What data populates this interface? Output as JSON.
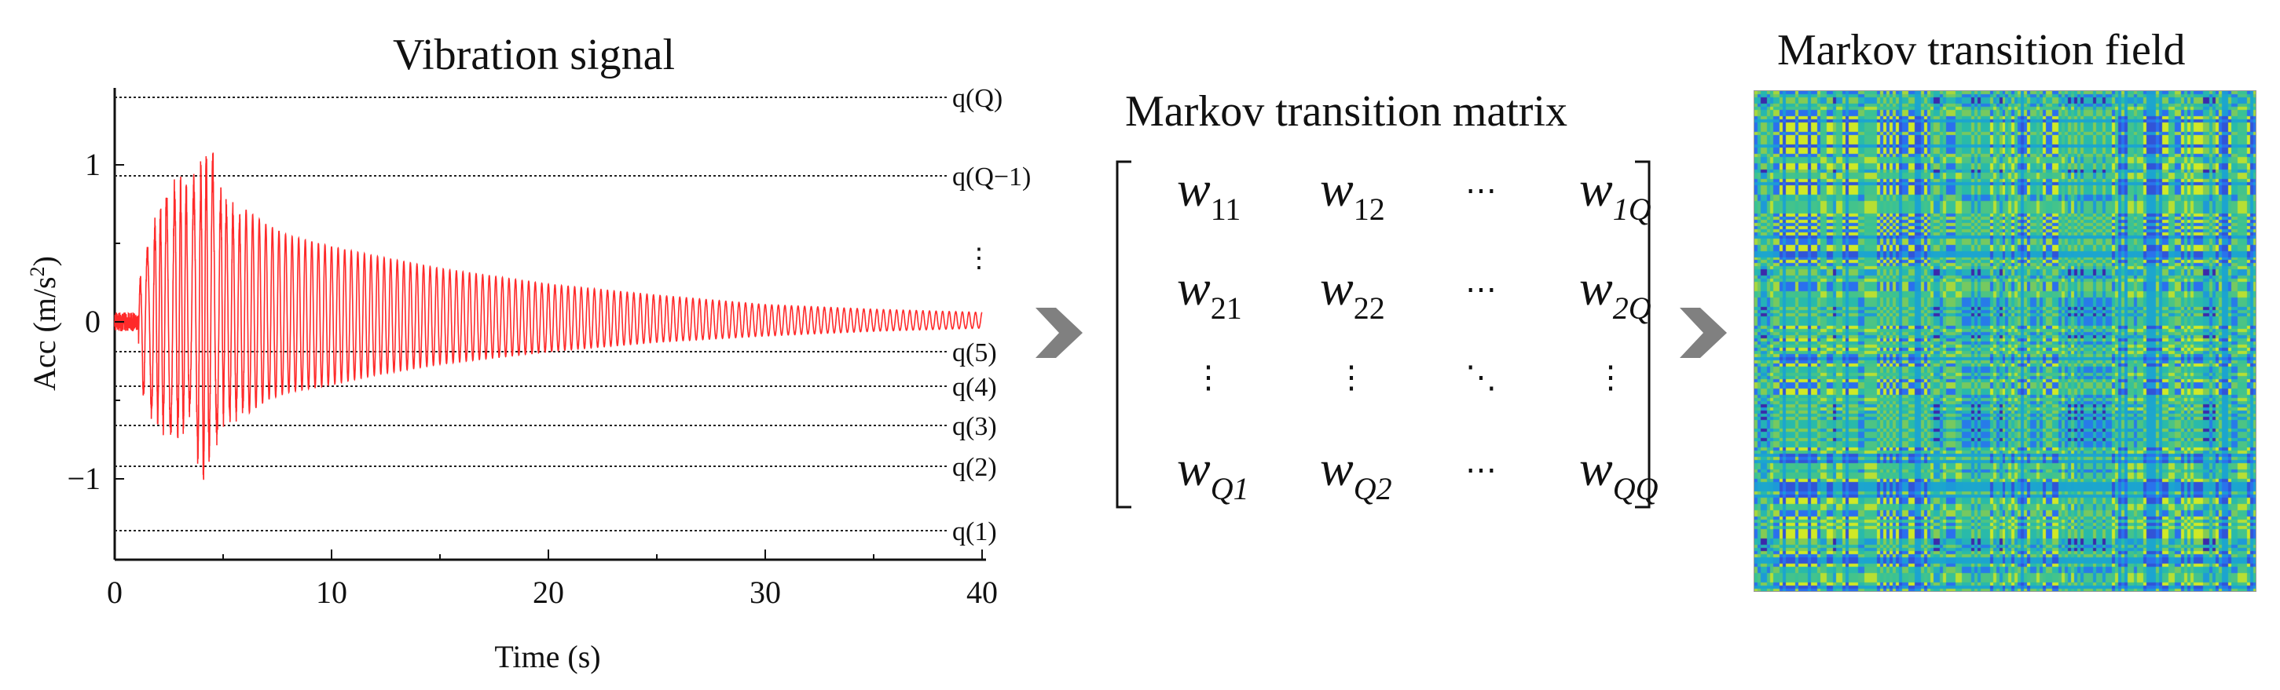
{
  "signal_panel": {
    "title": "Vibration signal",
    "xlabel": "Time (s)",
    "ylabel_prefix": "Acc (m/s",
    "ylabel_sup": "2",
    "ylabel_suffix": ")",
    "x_ticks": [
      "0",
      "10",
      "20",
      "30",
      "40"
    ],
    "y_ticks": [
      "1",
      "0",
      "−1"
    ],
    "levels": [
      "q(Q)",
      "q(Q−1)",
      "q(5)",
      "q(4)",
      "q(3)",
      "q(2)",
      "q(1)"
    ],
    "vertical_ellipsis": "⋮",
    "line_color": "#ff2a2a"
  },
  "matrix_panel": {
    "title": "Markov transition matrix",
    "symbol": "w",
    "cells": [
      [
        "11",
        "12",
        "⋯",
        "1Q"
      ],
      [
        "21",
        "22",
        "⋯",
        "2Q"
      ],
      [
        "⋮",
        "⋮",
        "⋱",
        "⋮"
      ],
      [
        "Q1",
        "Q2",
        "⋯",
        "QQ"
      ]
    ]
  },
  "field_panel": {
    "title": "Markov transition field",
    "colormap": [
      "#3d26a8",
      "#2b6df0",
      "#1aa2d3",
      "#2cc0a0",
      "#8dcc4c",
      "#f9fb0e"
    ]
  },
  "arrow_color": "#808080",
  "chart_data": {
    "type": "line",
    "title": "Vibration signal",
    "xlabel": "Time (s)",
    "ylabel": "Acc (m/s2)",
    "xlim": [
      0,
      40
    ],
    "ylim": [
      -1.5,
      1.45
    ],
    "x_ticks": [
      0,
      10,
      20,
      30,
      40
    ],
    "y_ticks": [
      -1,
      0,
      1
    ],
    "series": [
      {
        "x": [
          0,
          1,
          1.5,
          2,
          2.5,
          3,
          3.5,
          4,
          4.4,
          5,
          6,
          7,
          8,
          10,
          12,
          15,
          20,
          25,
          30,
          35,
          40
        ],
        "y_peak_positive": [
          0.05,
          0.2,
          0.5,
          0.75,
          0.93,
          0.95,
          0.9,
          1.1,
          1.23,
          0.85,
          0.72,
          0.62,
          0.55,
          0.48,
          0.42,
          0.34,
          0.24,
          0.17,
          0.11,
          0.08,
          0.06
        ],
        "y_peak_negative": [
          -0.05,
          -0.35,
          -0.6,
          -0.7,
          -0.8,
          -0.78,
          -0.6,
          -1.12,
          -0.9,
          -0.72,
          -0.6,
          -0.5,
          -0.45,
          -0.4,
          -0.34,
          -0.27,
          -0.19,
          -0.13,
          -0.09,
          -0.06,
          -0.04
        ]
      }
    ],
    "quantile_levels": [
      1.43,
      0.93,
      -0.19,
      -0.41,
      -0.66,
      -0.92,
      -1.33
    ],
    "quantile_labels": [
      "q(Q)",
      "q(Q−1)",
      "q(5)",
      "q(4)",
      "q(3)",
      "q(2)",
      "q(1)"
    ]
  }
}
